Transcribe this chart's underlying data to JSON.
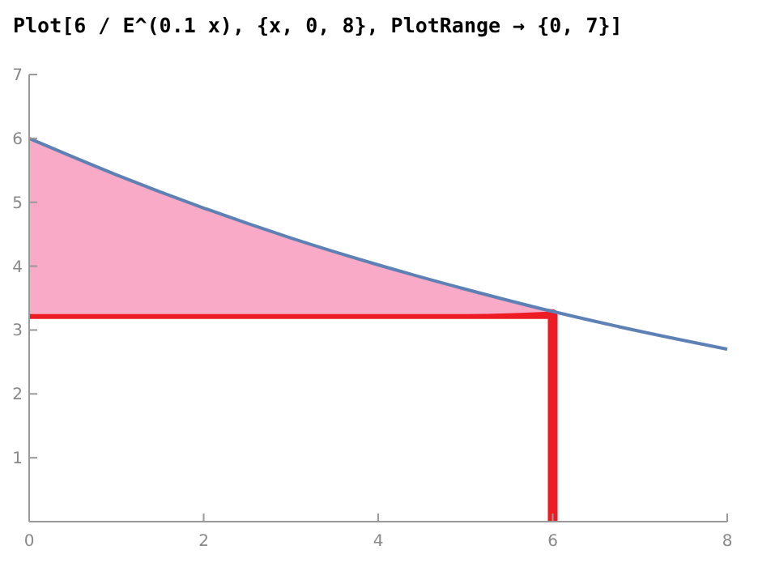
{
  "chart_data": {
    "type": "line",
    "title": "Plot[6 / E^(0.1 x), {x, 0, 8}, PlotRange → {0, 7}]",
    "xlim": [
      0,
      8
    ],
    "ylim": [
      0,
      7
    ],
    "xticks": [
      0,
      2,
      4,
      6,
      8
    ],
    "yticks": [
      1,
      2,
      3,
      4,
      5,
      6,
      7
    ],
    "grid": false,
    "marker": "none",
    "series": [
      {
        "type": "line",
        "color": "#ed1c24",
        "x": [
          0,
          6,
          6
        ],
        "values": [
          3.25,
          3.25,
          0
        ]
      },
      {
        "color": "#5e81b5",
        "x": [
          0,
          1,
          2,
          3,
          4,
          5,
          6,
          7,
          8
        ],
        "values": [
          6,
          5.43,
          4.91,
          4.44,
          4.02,
          3.64,
          3.29,
          2.98,
          2.7
        ],
        "lower": [
          3.25,
          3.25,
          3.25,
          3.25,
          3.25,
          3.25,
          3.29,
          null,
          null
        ],
        "upper": [
          6,
          5.43,
          4.91,
          4.44,
          4.02,
          3.64,
          3.29,
          null,
          null
        ]
      }
    ]
  }
}
